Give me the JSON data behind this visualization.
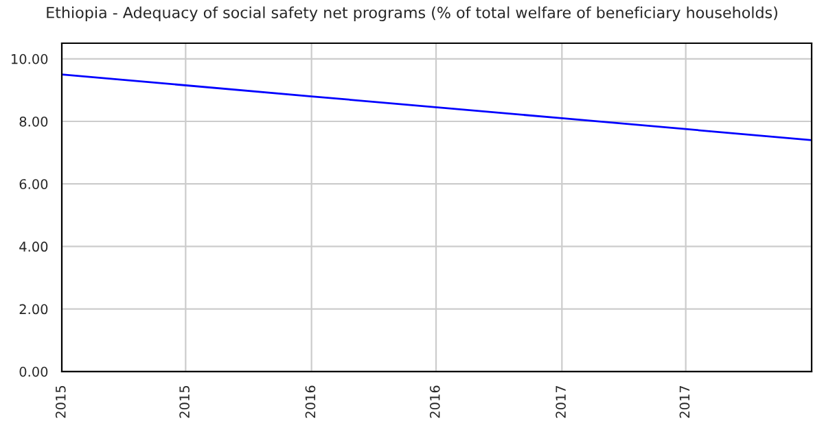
{
  "chart_data": {
    "type": "line",
    "title": "Ethiopia - Adequacy of social safety net programs (% of total welfare of beneficiary households)",
    "x": [
      "2015",
      "2016",
      "2017",
      "2018"
    ],
    "series": [
      {
        "color": "#0000ff",
        "values": [
          9.5,
          8.8,
          8.1,
          7.4
        ]
      }
    ],
    "xlim": [
      "2015-01",
      "2018-01"
    ],
    "xticks": [
      {
        "value": "2015-01",
        "label": "2015"
      },
      {
        "value": "2015-07",
        "label": "2015"
      },
      {
        "value": "2016-01",
        "label": "2016"
      },
      {
        "value": "2016-07",
        "label": "2016"
      },
      {
        "value": "2017-01",
        "label": "2017"
      },
      {
        "value": "2017-07",
        "label": "2017"
      }
    ],
    "ylim": [
      0,
      10.5
    ],
    "yticks": [
      {
        "value": 0,
        "label": "0.00"
      },
      {
        "value": 2,
        "label": "2.00"
      },
      {
        "value": 4,
        "label": "4.00"
      },
      {
        "value": 6,
        "label": "6.00"
      },
      {
        "value": 8,
        "label": "8.00"
      },
      {
        "value": 10,
        "label": "10.00"
      }
    ],
    "grid": true,
    "marker": "none",
    "line_style": "solid"
  }
}
